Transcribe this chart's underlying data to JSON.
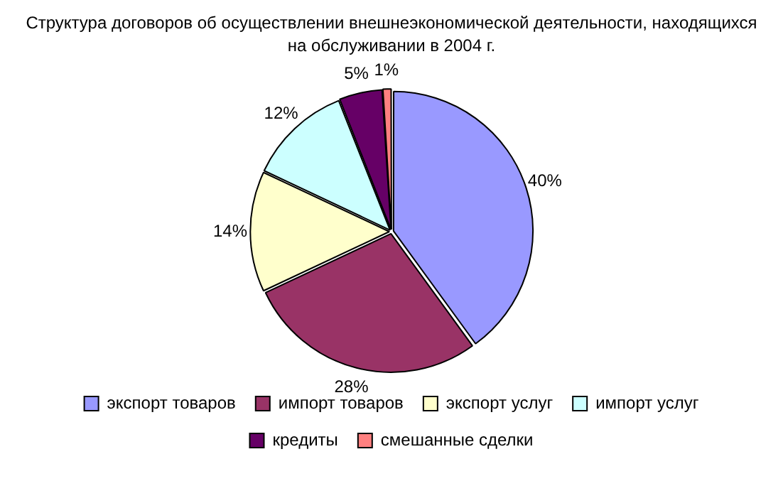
{
  "chart_data": {
    "type": "pie",
    "title": "Структура договоров об осуществлении внешнеэкономической деятельности, находящихся на обслуживании в 2004 г.",
    "categories": [
      "экспорт товаров",
      "импорт товаров",
      "экспорт услуг",
      "импорт услуг",
      "кредиты",
      "смешанные сделки"
    ],
    "values": [
      40,
      28,
      14,
      12,
      5,
      1
    ],
    "value_labels": [
      "40%",
      "28%",
      "14%",
      "12%",
      "5%",
      "1%"
    ],
    "colors": [
      "#9999ff",
      "#993366",
      "#ffffcc",
      "#ccffff",
      "#660066",
      "#ff8080"
    ],
    "legend": "bottom"
  }
}
